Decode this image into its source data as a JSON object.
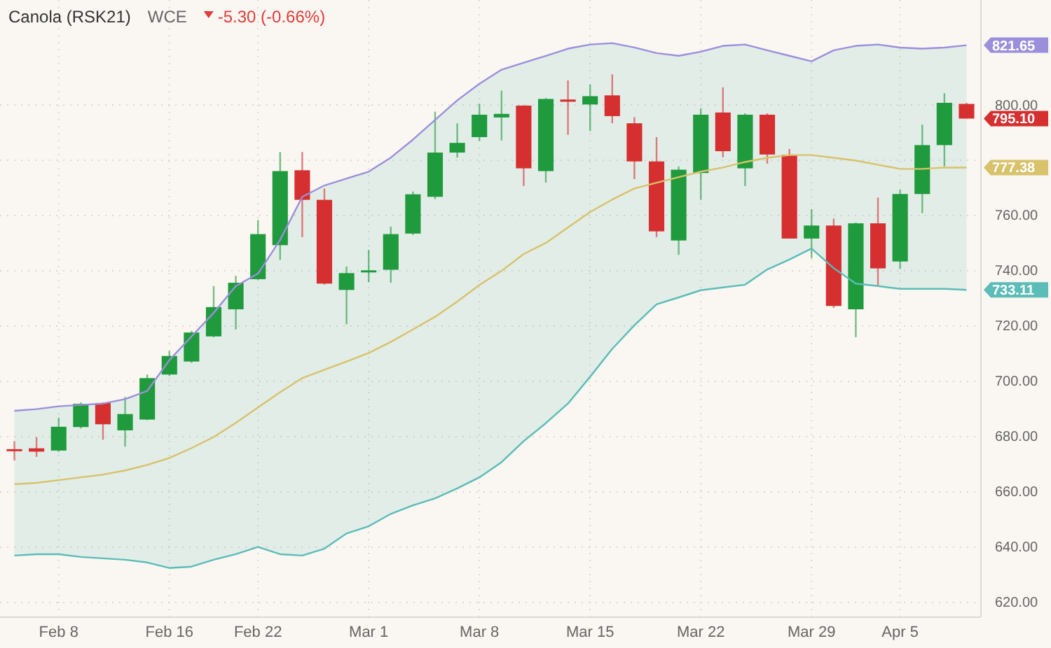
{
  "chart_data": {
    "type": "candlestick",
    "title": "Canola (RSK21)",
    "subtitle": "WCE",
    "annotations": [
      "-5.30 (-0.66%)"
    ],
    "categories": [
      null,
      null,
      "Feb 8",
      null,
      null,
      null,
      null,
      "Feb 16",
      null,
      null,
      null,
      "Feb 22",
      null,
      null,
      null,
      null,
      "Mar 1",
      null,
      null,
      null,
      null,
      "Mar 8",
      null,
      null,
      null,
      null,
      "Mar 15",
      null,
      null,
      null,
      null,
      "Mar 22",
      null,
      null,
      null,
      null,
      "Mar 29",
      null,
      null,
      null,
      "Apr 5",
      null,
      null,
      null
    ],
    "ylim": [
      614.7,
      838
    ],
    "yticks": [
      {
        "value": 620,
        "label": "620.00"
      },
      {
        "value": 640,
        "label": "640.00"
      },
      {
        "value": 660,
        "label": "660.00"
      },
      {
        "value": 680,
        "label": "680.00"
      },
      {
        "value": 700,
        "label": "700.00"
      },
      {
        "value": 720,
        "label": "720.00"
      },
      {
        "value": 740,
        "label": "740.00"
      },
      {
        "value": 760,
        "label": "760.00"
      },
      {
        "value": 780,
        "label": null
      },
      {
        "value": 800,
        "label": "800.00"
      }
    ],
    "grid": true,
    "series": [
      {
        "type": "line",
        "color": "#9b8fdc",
        "values": [
          689.4,
          690,
          691,
          691.5,
          692,
          693.6,
          696.6,
          707.7,
          716.3,
          724.8,
          734.5,
          739,
          751.2,
          766.8,
          770.9,
          773.4,
          775.9,
          781,
          787.5,
          794.6,
          801.7,
          807.7,
          812.8,
          815.3,
          817.8,
          820.4,
          821.9,
          822.4,
          820.8,
          818.8,
          817.8,
          819.3,
          821.4,
          821.9,
          819.8,
          817.8,
          815.8,
          819.8,
          821.4,
          821.9,
          820.8,
          820.4,
          820.8,
          821.65
        ],
        "value_labels": [
          null,
          null,
          null,
          null,
          null,
          null,
          null,
          null,
          null,
          null,
          null,
          null,
          null,
          null,
          null,
          null,
          null,
          null,
          null,
          null,
          null,
          null,
          null,
          null,
          null,
          null,
          null,
          null,
          null,
          null,
          null,
          null,
          null,
          null,
          null,
          null,
          null,
          null,
          null,
          null,
          null,
          null,
          null,
          "821.65"
        ]
      },
      {
        "type": "line",
        "color": "#d8c26a",
        "upper": [
          689.4,
          690,
          691,
          691.5,
          692,
          693.6,
          696.6,
          707.7,
          716.3,
          724.8,
          734.5,
          739,
          751.2,
          766.8,
          770.9,
          773.4,
          775.9,
          781,
          787.5,
          794.6,
          801.7,
          807.7,
          812.8,
          815.3,
          817.8,
          820.4,
          821.9,
          822.4,
          820.8,
          818.8,
          817.8,
          819.3,
          821.4,
          821.9,
          819.8,
          817.8,
          815.8,
          819.8,
          821.4,
          821.9,
          820.8,
          820.4,
          820.8,
          821.65
        ],
        "lower": [
          637,
          637.5,
          637.5,
          636.5,
          636,
          635.5,
          634.5,
          632.5,
          633,
          635.5,
          637.5,
          640.1,
          637.5,
          637,
          639.5,
          645,
          647.6,
          652.1,
          655.2,
          657.7,
          661.3,
          665.3,
          670.8,
          678.4,
          684.9,
          692,
          701.7,
          711.8,
          720.3,
          727.9,
          730.4,
          733,
          734,
          735,
          740.5,
          744.1,
          748.1,
          741,
          735.4,
          734.5,
          733.5,
          733.5,
          733.5,
          733.11
        ],
        "values": [
          662.8,
          663.3,
          664.3,
          665.3,
          666.3,
          667.8,
          669.8,
          672.3,
          675.9,
          679.9,
          685,
          690.6,
          696.1,
          701.2,
          704.2,
          707.2,
          710.3,
          714.3,
          718.8,
          723.4,
          728.9,
          734.9,
          740,
          746.1,
          750.1,
          755.7,
          761.3,
          765.8,
          769.8,
          771.9,
          773.9,
          775.9,
          777.4,
          779.4,
          780.9,
          781.9,
          781.9,
          780.9,
          779.9,
          778.4,
          776.9,
          776.9,
          777.4,
          777.38
        ],
        "value_labels": [
          null,
          null,
          null,
          null,
          null,
          null,
          null,
          null,
          null,
          null,
          null,
          null,
          null,
          null,
          null,
          null,
          null,
          null,
          null,
          null,
          null,
          null,
          null,
          null,
          null,
          null,
          null,
          null,
          null,
          null,
          null,
          null,
          null,
          null,
          null,
          null,
          null,
          null,
          null,
          null,
          null,
          null,
          null,
          "777.38"
        ]
      },
      {
        "type": "line",
        "color": "#5bbcb8",
        "values": [
          637,
          637.5,
          637.5,
          636.5,
          636,
          635.5,
          634.5,
          632.5,
          633,
          635.5,
          637.5,
          640.1,
          637.5,
          637,
          639.5,
          645,
          647.6,
          652.1,
          655.2,
          657.7,
          661.3,
          665.3,
          670.8,
          678.4,
          684.9,
          692,
          701.7,
          711.8,
          720.3,
          727.9,
          730.4,
          733,
          734,
          735,
          740.5,
          744.1,
          748.1,
          741,
          735.4,
          734.5,
          733.5,
          733.5,
          733.5,
          733.11
        ],
        "value_labels": [
          null,
          null,
          null,
          null,
          null,
          null,
          null,
          null,
          null,
          null,
          null,
          null,
          null,
          null,
          null,
          null,
          null,
          null,
          null,
          null,
          null,
          null,
          null,
          null,
          null,
          null,
          null,
          null,
          null,
          null,
          null,
          null,
          null,
          null,
          null,
          null,
          null,
          null,
          null,
          null,
          null,
          null,
          null,
          "733.11"
        ]
      },
      {
        "colors": [
          "#d62f2f",
          "#d62f2f",
          "#1f9a3c",
          "#1f9a3c",
          "#d62f2f",
          "#1f9a3c",
          "#1f9a3c",
          "#1f9a3c",
          "#1f9a3c",
          "#1f9a3c",
          "#1f9a3c",
          "#1f9a3c",
          "#1f9a3c",
          "#d62f2f",
          "#d62f2f",
          "#1f9a3c",
          "#1f9a3c",
          "#1f9a3c",
          "#1f9a3c",
          "#1f9a3c",
          "#1f9a3c",
          "#1f9a3c",
          "#1f9a3c",
          "#d62f2f",
          "#1f9a3c",
          "#d62f2f",
          "#1f9a3c",
          "#d62f2f",
          "#d62f2f",
          "#d62f2f",
          "#1f9a3c",
          "#1f9a3c",
          "#d62f2f",
          "#1f9a3c",
          "#d62f2f",
          "#d62f2f",
          "#1f9a3c",
          "#d62f2f",
          "#1f9a3c",
          "#d62f2f",
          "#1f9a3c",
          "#1f9a3c",
          "#1f9a3c",
          "#d62f2f"
        ],
        "ohlc": [
          [
            675.5,
            678.4,
            671.4,
            675.0
          ],
          [
            675.8,
            679.8,
            672.7,
            674.6
          ],
          [
            675.0,
            686.9,
            674.5,
            683.6
          ],
          [
            683.5,
            692.4,
            683.0,
            691.9
          ],
          [
            692.2,
            692.4,
            678.9,
            684.5
          ],
          [
            682.3,
            694.4,
            676.4,
            688.2
          ],
          [
            686.2,
            702.5,
            686.0,
            701.2
          ],
          [
            702.5,
            711.0,
            702.0,
            709.2
          ],
          [
            707.2,
            718.3,
            706.7,
            717.7
          ],
          [
            716.3,
            734.5,
            716.0,
            726.9
          ],
          [
            726.1,
            738.2,
            718.8,
            735.7
          ],
          [
            737.0,
            758.4,
            736.7,
            753.3
          ],
          [
            749.3,
            783.0,
            744.0,
            776.1
          ],
          [
            776.4,
            783.0,
            752.2,
            765.7
          ],
          [
            765.7,
            769.8,
            735.0,
            735.4
          ],
          [
            733.1,
            741.6,
            720.7,
            739.2
          ],
          [
            739.6,
            747.6,
            735.9,
            740.2
          ],
          [
            740.4,
            756.0,
            735.7,
            753.3
          ],
          [
            753.5,
            768.7,
            753.0,
            767.7
          ],
          [
            766.8,
            797.6,
            766.0,
            782.8
          ],
          [
            782.8,
            793.4,
            781.0,
            786.3
          ],
          [
            788.4,
            800.5,
            787.0,
            796.5
          ],
          [
            795.5,
            805.2,
            787.2,
            796.8
          ],
          [
            799.8,
            800.0,
            770.7,
            777.1
          ],
          [
            776.1,
            802.5,
            771.9,
            802.2
          ],
          [
            802.0,
            808.9,
            789.2,
            801.2
          ],
          [
            800.2,
            807.4,
            790.6,
            803.2
          ],
          [
            803.5,
            811.1,
            793.4,
            796.0
          ],
          [
            793.4,
            795.6,
            773.2,
            779.6
          ],
          [
            779.6,
            788.4,
            752.2,
            754.3
          ],
          [
            751.0,
            777.8,
            745.8,
            776.6
          ],
          [
            775.4,
            798.8,
            765.7,
            796.5
          ],
          [
            797.3,
            806.4,
            781.1,
            783.3
          ],
          [
            777.1,
            797.0,
            770.7,
            796.5
          ],
          [
            796.5,
            797.0,
            778.8,
            782.1
          ],
          [
            782.0,
            784.1,
            751.7,
            751.7
          ],
          [
            751.7,
            762.3,
            744.6,
            756.4
          ],
          [
            756.4,
            758.9,
            726.6,
            727.3
          ],
          [
            726.1,
            757.5,
            716.0,
            757.2
          ],
          [
            757.2,
            766.5,
            734.5,
            740.9
          ],
          [
            743.4,
            769.3,
            740.7,
            767.8
          ],
          [
            767.8,
            792.9,
            760.9,
            785.5
          ],
          [
            785.5,
            804.3,
            777.8,
            800.8
          ],
          [
            800.4,
            800.8,
            795.1,
            795.1
          ]
        ],
        "value_labels": [
          null,
          null,
          null,
          null,
          null,
          null,
          null,
          null,
          null,
          null,
          null,
          null,
          null,
          null,
          null,
          null,
          null,
          null,
          null,
          null,
          null,
          null,
          null,
          null,
          null,
          null,
          null,
          null,
          null,
          null,
          null,
          null,
          null,
          null,
          null,
          null,
          null,
          null,
          null,
          null,
          null,
          null,
          null,
          "795.10"
        ]
      }
    ]
  }
}
